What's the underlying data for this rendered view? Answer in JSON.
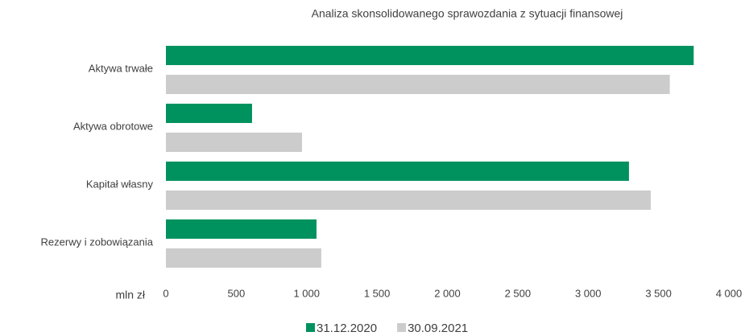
{
  "chart_data": {
    "type": "barh",
    "title": "Analiza skonsolidowanego sprawozdania z sytuacji finansowej",
    "xlabel": "mln zł",
    "categories": [
      "Aktywa trwałe",
      "Aktywa obrotowe",
      "Kapitał własny",
      "Rezerwy i zobowiązania"
    ],
    "series": [
      {
        "name": "31.12.2020",
        "color": "#00925e",
        "values": [
          3750,
          612,
          3290,
          1070
        ]
      },
      {
        "name": "30.09.2021",
        "color": "#cccccc",
        "values": [
          3580,
          967,
          3445,
          1104
        ]
      }
    ],
    "xlim": [
      0,
      4000
    ],
    "xticks": [
      0,
      500,
      {
        "value": 1000,
        "label": "1 000"
      },
      {
        "value": 1500,
        "label": "1 500"
      },
      {
        "value": 2000,
        "label": "2 000"
      },
      {
        "value": 2500,
        "label": "2 500"
      },
      {
        "value": 3000,
        "label": "3 000"
      },
      {
        "value": 3500,
        "label": "3 500"
      },
      {
        "value": 4000,
        "label": "4 000"
      }
    ],
    "legend": "bottom",
    "grid": false
  }
}
